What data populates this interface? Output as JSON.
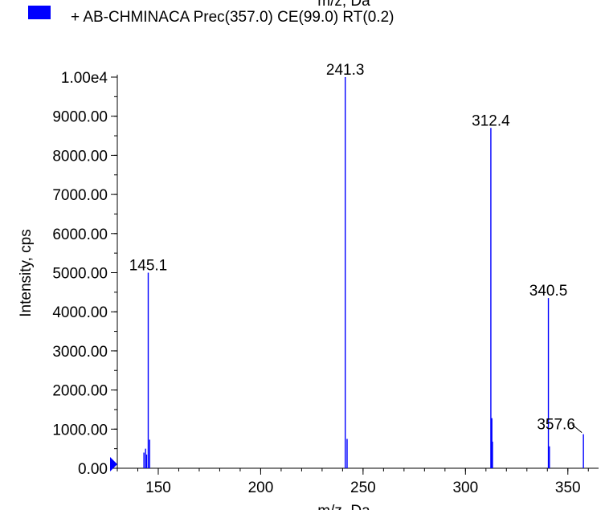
{
  "chart_data": {
    "type": "bar",
    "title": "",
    "xlabel": "m/z, Da",
    "ylabel": "Intensity, cps",
    "xlim": [
      130,
      365
    ],
    "ylim": [
      0,
      10000
    ],
    "grid": false,
    "legend_position": "top-left",
    "series": [
      {
        "name": "+ AB-CHMINACA Prec(357.0) CE(99.0) RT(0.2)",
        "color": "#0000ff",
        "x": [
          143.0,
          143.8,
          144.3,
          145.1,
          145.8,
          241.3,
          242.2,
          312.4,
          312.9,
          313.2,
          340.5,
          341.0,
          357.6
        ],
        "values": [
          400,
          500,
          350,
          5000,
          730,
          10000,
          750,
          8700,
          1280,
          680,
          4350,
          560,
          870
        ]
      }
    ],
    "peak_labels": [
      {
        "x": 145.1,
        "y": 5000,
        "text": "145.1"
      },
      {
        "x": 241.3,
        "y": 10000,
        "text": "241.3"
      },
      {
        "x": 312.4,
        "y": 8700,
        "text": "312.4"
      },
      {
        "x": 340.5,
        "y": 4350,
        "text": "340.5"
      },
      {
        "x": 357.6,
        "y": 870,
        "text": "357.6"
      }
    ],
    "x_ticks": [
      150,
      200,
      250,
      300,
      350
    ],
    "x_tick_labels": [
      "150",
      "200",
      "250",
      "300",
      "350"
    ],
    "y_ticks": [
      0,
      1000,
      2000,
      3000,
      4000,
      5000,
      6000,
      7000,
      8000,
      9000,
      10000
    ],
    "y_tick_labels": [
      "0.00",
      "1000.00",
      "2000.00",
      "3000.00",
      "4000.00",
      "5000.00",
      "6000.00",
      "7000.00",
      "8000.00",
      "9000.00",
      "1.00e4"
    ],
    "x_minor_step": 10,
    "y_minor_step": 500,
    "cropped_top_axis_title": "m/z, Da"
  }
}
